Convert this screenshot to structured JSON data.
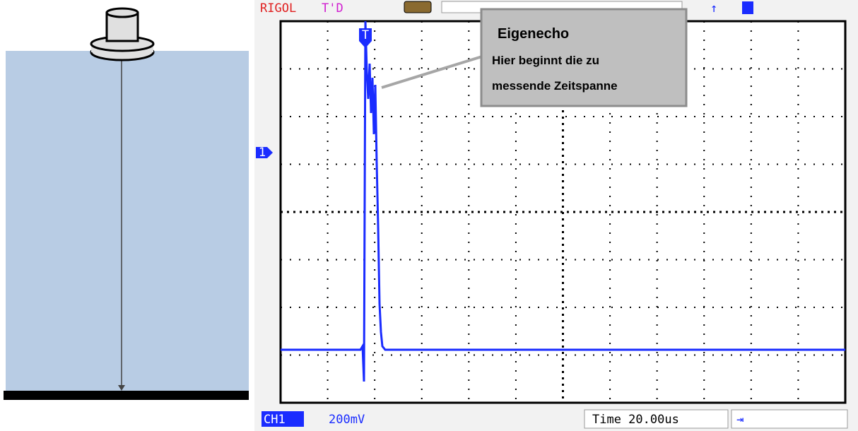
{
  "header": {
    "brand": "RIGOL",
    "trigger_status": "T'D"
  },
  "annotation": {
    "title": "Eigenecho",
    "lines": [
      "Hier beginnt die zu",
      "messende Zeitspanne"
    ]
  },
  "markers": {
    "trigger": "T",
    "channel": "1"
  },
  "footer": {
    "channel": "CH1",
    "scale": "200mV",
    "timebase": "Time 20.00us"
  }
}
